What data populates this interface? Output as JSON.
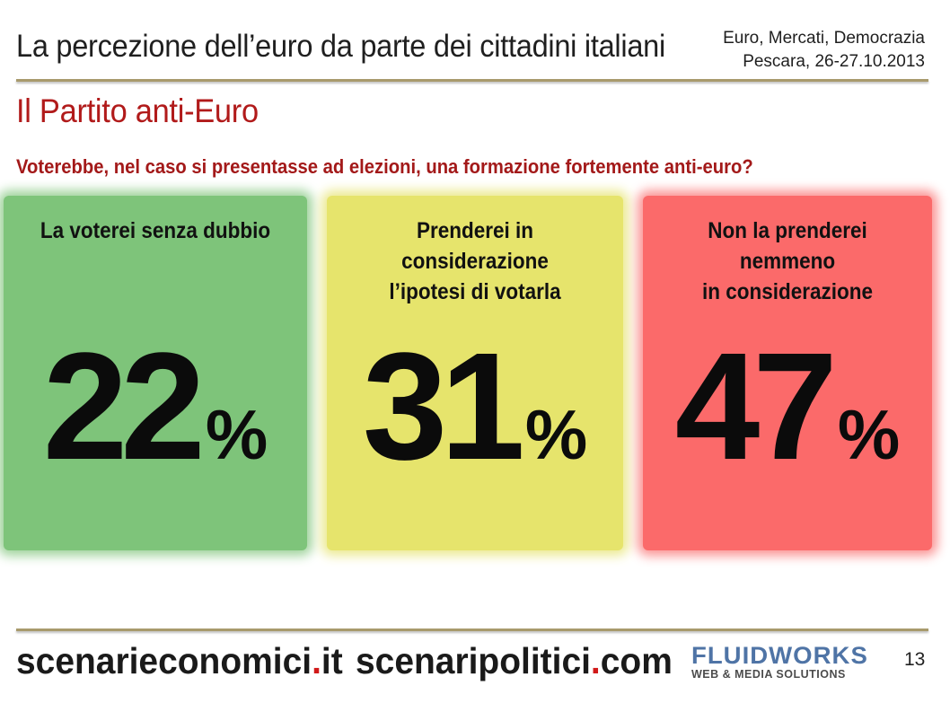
{
  "header": {
    "title": "La percezione dell’euro da parte dei cittadini italiani",
    "event_line1": "Euro, Mercati, Democrazia",
    "event_line2": "Pescara, 26-27.10.2013"
  },
  "section": {
    "title": "Il Partito anti-Euro",
    "question": "Voterebbe, nel caso si presentasse ad elezioni, una formazione fortemente anti-euro?"
  },
  "panels": [
    {
      "label_line1": "La voterei senza dubbio",
      "label_line2": "",
      "value": "22",
      "unit": "%",
      "color": "#7ec47a"
    },
    {
      "label_line1": "Prenderei in considerazione",
      "label_line2": "l’ipotesi di votarla",
      "value": "31",
      "unit": "%",
      "color": "#e6e46c"
    },
    {
      "label_line1": "Non la prenderei nemmeno",
      "label_line2": "in considerazione",
      "value": "47",
      "unit": "%",
      "color": "#fb6a6a"
    }
  ],
  "footer": {
    "site1_name": "scenarieconomici",
    "site1_dot": ".",
    "site1_tld": "it",
    "site2_name": "scenaripolitici",
    "site2_dot": ".",
    "site2_tld": "com",
    "logo_main": "FLUIDWORKS",
    "logo_sub": "WEB & MEDIA SOLUTIONS",
    "page_number": "13"
  },
  "colors": {
    "accent_red": "#b11a1a",
    "rule": "#a89a6c",
    "logo_blue": "#4f74a6"
  }
}
